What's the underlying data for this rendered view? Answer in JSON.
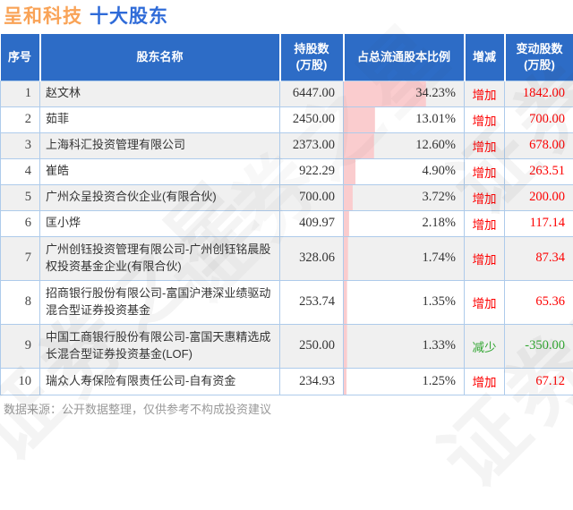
{
  "title": {
    "company": "呈和科技",
    "suffix": "十大股东"
  },
  "table": {
    "headers": [
      "序号",
      "股东名称",
      "持股数\n(万股)",
      "占总流通股本比例",
      "增减",
      "变动股数\n(万股)"
    ],
    "rows": [
      {
        "rank": "1",
        "name": "赵文林",
        "shares": "6447.00",
        "percent": "34.23%",
        "change_dir": "增加",
        "change_shares": "1842.00"
      },
      {
        "rank": "2",
        "name": "茹菲",
        "shares": "2450.00",
        "percent": "13.01%",
        "change_dir": "增加",
        "change_shares": "700.00"
      },
      {
        "rank": "3",
        "name": "上海科汇投资管理有限公司",
        "shares": "2373.00",
        "percent": "12.60%",
        "change_dir": "增加",
        "change_shares": "678.00"
      },
      {
        "rank": "4",
        "name": "崔皓",
        "shares": "922.29",
        "percent": "4.90%",
        "change_dir": "增加",
        "change_shares": "263.51"
      },
      {
        "rank": "5",
        "name": "广州众呈投资合伙企业(有限合伙)",
        "shares": "700.00",
        "percent": "3.72%",
        "change_dir": "增加",
        "change_shares": "200.00"
      },
      {
        "rank": "6",
        "name": "匡小烨",
        "shares": "409.97",
        "percent": "2.18%",
        "change_dir": "增加",
        "change_shares": "117.14"
      },
      {
        "rank": "7",
        "name": "广州创钰投资管理有限公司-广州创钰铭晨股权投资基金企业(有限合伙)",
        "shares": "328.06",
        "percent": "1.74%",
        "change_dir": "增加",
        "change_shares": "87.34"
      },
      {
        "rank": "8",
        "name": "招商银行股份有限公司-富国沪港深业绩驱动混合型证券投资基金",
        "shares": "253.74",
        "percent": "1.35%",
        "change_dir": "增加",
        "change_shares": "65.36"
      },
      {
        "rank": "9",
        "name": "中国工商银行股份有限公司-富国天惠精选成长混合型证券投资基金(LOF)",
        "shares": "250.00",
        "percent": "1.33%",
        "change_dir": "减少",
        "change_shares": "-350.00"
      },
      {
        "rank": "10",
        "name": "瑞众人寿保险有限责任公司-自有资金",
        "shares": "234.93",
        "percent": "1.25%",
        "change_dir": "增加",
        "change_shares": "67.12"
      }
    ]
  },
  "footer": {
    "note": "数据来源：公开数据整理，仅供参考不构成投资建议"
  },
  "watermark": {
    "text": "证券之星"
  },
  "colors": {
    "header_bg": "#2D6CC6",
    "title_company_orange": "#F9A357",
    "title_suffix_blue": "#2F6BD8",
    "increase_red": "#FD0000",
    "decrease_green": "#2FA52F",
    "bar_pink": "#FACCCE",
    "row_alt_bg": "#F0F0F0",
    "grid_border_blue": "#AECBEB",
    "footer_gray": "#999999"
  },
  "chart_data": {
    "type": "table",
    "title": "呈和科技 十大股东",
    "columns": [
      "序号",
      "股东名称",
      "持股数(万股)",
      "占总流通股本比例",
      "增减",
      "变动股数(万股)"
    ],
    "rows": [
      [
        "1",
        "赵文林",
        6447.0,
        "34.23%",
        "增加",
        1842.0
      ],
      [
        "2",
        "茹菲",
        2450.0,
        "13.01%",
        "增加",
        700.0
      ],
      [
        "3",
        "上海科汇投资管理有限公司",
        2373.0,
        "12.60%",
        "增加",
        678.0
      ],
      [
        "4",
        "崔皓",
        922.29,
        "4.90%",
        "增加",
        263.51
      ],
      [
        "5",
        "广州众呈投资合伙企业(有限合伙)",
        700.0,
        "3.72%",
        "增加",
        200.0
      ],
      [
        "6",
        "匡小烨",
        409.97,
        "2.18%",
        "增加",
        117.14
      ],
      [
        "7",
        "广州创钰投资管理有限公司-广州创钰铭晨股权投资基金企业(有限合伙)",
        328.06,
        "1.74%",
        "增加",
        87.34
      ],
      [
        "8",
        "招商银行股份有限公司-富国沪港深业绩驱动混合型证券投资基金",
        253.74,
        "1.35%",
        "增加",
        65.36
      ],
      [
        "9",
        "中国工商银行股份有限公司-富国天惠精选成长混合型证券投资基金(LOF)",
        250.0,
        "1.33%",
        "减少",
        -350.0
      ],
      [
        "10",
        "瑞众人寿保险有限责任公司-自有资金",
        234.93,
        "1.25%",
        "增加",
        67.12
      ]
    ],
    "embedded_bar": {
      "column": "占总流通股本比例",
      "values_percent": [
        34.23,
        13.01,
        12.6,
        4.9,
        3.72,
        2.18,
        1.74,
        1.35,
        1.33,
        1.25
      ],
      "axis_max_percent": 50,
      "bar_color": "#FACCCE",
      "orientation": "horizontal-left"
    }
  }
}
